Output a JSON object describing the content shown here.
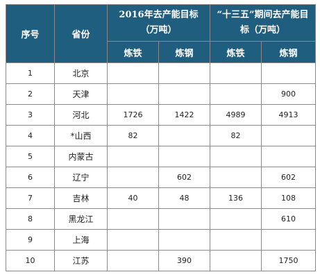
{
  "header": {
    "seq": "序号",
    "province": "省份",
    "target2016": "2016年去产能目标（万吨）",
    "target135": "“十三五”期间去产能目标（万吨）",
    "iron": "炼铁",
    "steel": "炼钢"
  },
  "rows": [
    {
      "seq": "1",
      "province": "北京",
      "iron2016": "",
      "steel2016": "",
      "iron135": "",
      "steel135": ""
    },
    {
      "seq": "2",
      "province": "天津",
      "iron2016": "",
      "steel2016": "",
      "iron135": "",
      "steel135": "900"
    },
    {
      "seq": "3",
      "province": "河北",
      "iron2016": "1726",
      "steel2016": "1422",
      "iron135": "4989",
      "steel135": "4913"
    },
    {
      "seq": "4",
      "province": "*山西",
      "iron2016": "82",
      "steel2016": "",
      "iron135": "82",
      "steel135": ""
    },
    {
      "seq": "5",
      "province": "内蒙古",
      "iron2016": "",
      "steel2016": "",
      "iron135": "",
      "steel135": ""
    },
    {
      "seq": "6",
      "province": "辽宁",
      "iron2016": "",
      "steel2016": "602",
      "iron135": "",
      "steel135": "602"
    },
    {
      "seq": "7",
      "province": "吉林",
      "iron2016": "40",
      "steel2016": "48",
      "iron135": "136",
      "steel135": "108"
    },
    {
      "seq": "8",
      "province": "黑龙江",
      "iron2016": "",
      "steel2016": "",
      "iron135": "",
      "steel135": "610"
    },
    {
      "seq": "9",
      "province": "上海",
      "iron2016": "",
      "steel2016": "",
      "iron135": "",
      "steel135": ""
    },
    {
      "seq": "10",
      "province": "江苏",
      "iron2016": "",
      "steel2016": "390",
      "iron135": "",
      "steel135": "1750"
    }
  ],
  "colors": {
    "header_bg": "#1f5e7e",
    "header_text": "#ffffff",
    "grid": "#8a8a8a"
  }
}
